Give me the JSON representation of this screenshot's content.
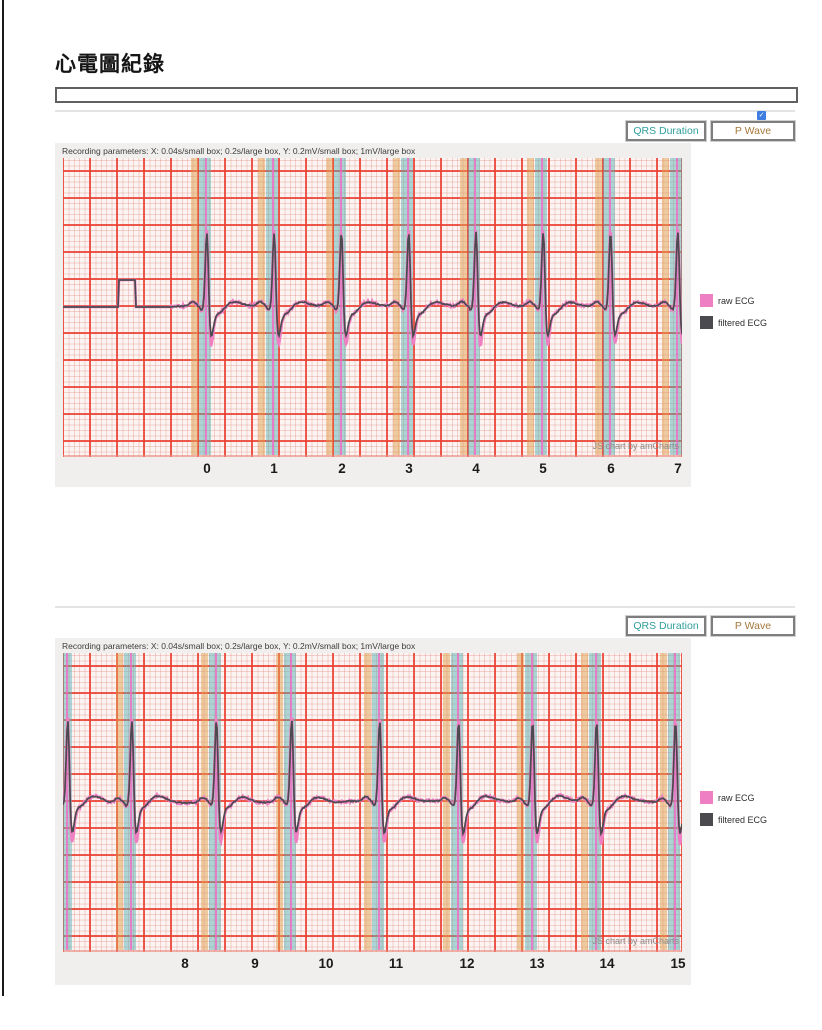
{
  "page": {
    "title": "心電圖紀錄"
  },
  "search": {
    "value": ""
  },
  "toolbar": {
    "qrs_label": "QRS Duration",
    "p_wave_label": "P Wave",
    "p_wave_checked": true
  },
  "colors": {
    "grid_major": "#eb3e30",
    "grid_minor": "#e8c4bc",
    "p_wave_band": "#e2a050",
    "qrs_band": "#58b2b4",
    "r_marker": "#f268c4",
    "raw_ecg": "#ee7fc3",
    "filtered_ecg": "#4a4a4f",
    "qrs_button_text": "#2f9e9e",
    "p_wave_button_text": "#a5783c"
  },
  "chart_data": [
    {
      "type": "line",
      "title": "Recording parameters: X: 0.04s/small box; 0.2s/large box, Y: 0.2mV/small box; 1mV/large box",
      "watermark": "JS chart by amCharts",
      "x_ticks": [
        0,
        1,
        2,
        3,
        4,
        5,
        6,
        7
      ],
      "x_range": [
        -2.14,
        7.06
      ],
      "grid": "ecg-paper",
      "sec_per_large_box": 0.2,
      "mv_per_large_box": 1,
      "beat_times": [
        0,
        1,
        2,
        3,
        4,
        5,
        6,
        7
      ],
      "r_amplitude_mv": 3.2,
      "s_depth_mv": 1.05,
      "calibration_pulse": {
        "start": -1.32,
        "end": -1.06,
        "amplitude_mv": 1
      },
      "activity_start": -0.55,
      "series": [
        {
          "name": "raw ECG",
          "color": "#ee7fc3"
        },
        {
          "name": "filtered ECG",
          "color": "#4a4a4f"
        }
      ]
    },
    {
      "type": "line",
      "title": "Recording parameters: X: 0.04s/small box; 0.2s/large box, Y: 0.2mV/small box; 1mV/large box",
      "watermark": "JS chart by amCharts",
      "x_ticks": [
        8,
        9,
        10,
        11,
        12,
        13,
        14,
        15
      ],
      "x_range": [
        6.27,
        15.06
      ],
      "grid": "ecg-paper",
      "sec_per_large_box": 0.2,
      "mv_per_large_box": 1,
      "beat_times": [
        6.34,
        7.25,
        8.45,
        9.52,
        10.77,
        11.89,
        12.94,
        13.85,
        14.97
      ],
      "r_amplitude_mv": 3.5,
      "s_depth_mv": 1.15,
      "calibration_pulse": null,
      "activity_start": null,
      "series": [
        {
          "name": "raw ECG",
          "color": "#ee7fc3"
        },
        {
          "name": "filtered ECG",
          "color": "#4a4a4f"
        }
      ]
    }
  ]
}
